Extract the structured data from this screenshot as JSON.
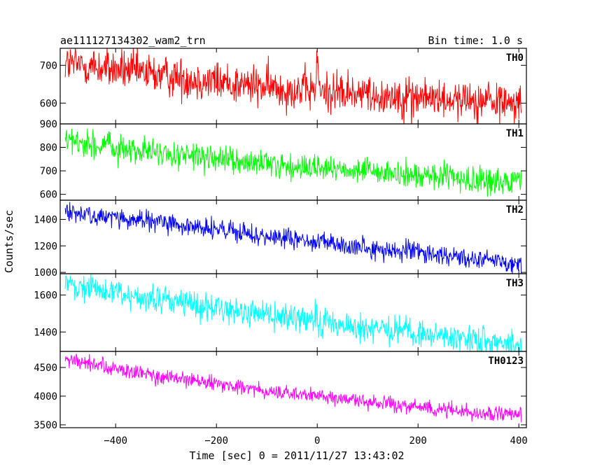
{
  "chart_data": {
    "type": "line",
    "title": "ae111127134302_wam2_trn",
    "bin_time_label": "Bin time: 1.0 s",
    "xlabel": "Time [sec] 0 = 2011/11/27 13:43:02",
    "ylabel": "Counts/sec",
    "xlim": [
      -510,
      415
    ],
    "x_ticks": [
      -400,
      -200,
      0,
      200,
      400
    ],
    "x_tick_labels": [
      "−400",
      "−200",
      "0",
      "200",
      "400"
    ],
    "bin_seconds": 1.0,
    "panels": [
      {
        "name": "TH0",
        "color": "#ff0000",
        "ylim": [
          545,
          745
        ],
        "y_ticks": [
          600,
          700
        ],
        "y_tick_labels": [
          "600",
          "700"
        ],
        "trend": [
          [
            -500,
            705
          ],
          [
            -300,
            672
          ],
          [
            -100,
            642
          ],
          [
            100,
            622
          ],
          [
            300,
            608
          ],
          [
            405,
            600
          ]
        ],
        "noise": 27,
        "spike": {
          "x": 0,
          "y": 740
        }
      },
      {
        "name": "TH1",
        "color": "#00ff00",
        "ylim": [
          575,
          900
        ],
        "y_ticks": [
          600,
          700,
          800,
          900
        ],
        "y_tick_labels": [
          "600",
          "700",
          "800",
          "900"
        ],
        "trend": [
          [
            -500,
            828
          ],
          [
            -300,
            770
          ],
          [
            -100,
            725
          ],
          [
            100,
            695
          ],
          [
            300,
            662
          ],
          [
            405,
            650
          ]
        ],
        "noise": 28
      },
      {
        "name": "TH2",
        "color": "#0000ff",
        "ylim": [
          990,
          1545
        ],
        "y_ticks": [
          1000,
          1200,
          1400
        ],
        "y_tick_labels": [
          "1000",
          "1200",
          "1400"
        ],
        "trend": [
          [
            -500,
            1455
          ],
          [
            -300,
            1370
          ],
          [
            -100,
            1270
          ],
          [
            100,
            1185
          ],
          [
            300,
            1115
          ],
          [
            405,
            1065
          ]
        ],
        "noise": 38
      },
      {
        "name": "TH3",
        "color": "#00ffff",
        "ylim": [
          1295,
          1715
        ],
        "y_ticks": [
          1400,
          1600
        ],
        "y_tick_labels": [
          "1400",
          "1600"
        ],
        "trend": [
          [
            -500,
            1660
          ],
          [
            -300,
            1565
          ],
          [
            -100,
            1495
          ],
          [
            100,
            1420
          ],
          [
            300,
            1360
          ],
          [
            405,
            1335
          ]
        ],
        "noise": 38
      },
      {
        "name": "TH0123",
        "color": "#ff00ff",
        "ylim": [
          3450,
          4780
        ],
        "y_ticks": [
          3500,
          4000,
          4500
        ],
        "y_tick_labels": [
          "3500",
          "4000",
          "4500"
        ],
        "trend": [
          [
            -500,
            4640
          ],
          [
            -300,
            4320
          ],
          [
            -100,
            4090
          ],
          [
            100,
            3900
          ],
          [
            300,
            3730
          ],
          [
            405,
            3650
          ]
        ],
        "noise": 65
      }
    ]
  }
}
